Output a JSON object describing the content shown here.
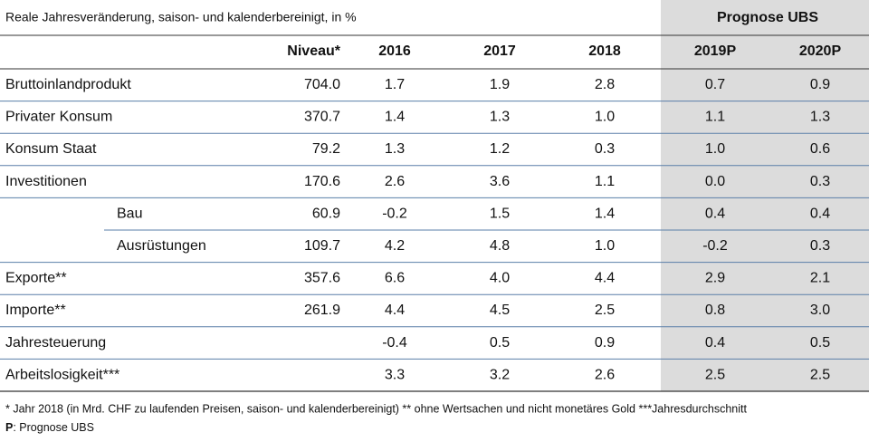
{
  "header": {
    "caption": "Reale Jahresveränderung, saison- und kalenderbereinigt, in %",
    "forecast": "Prognose UBS"
  },
  "table": {
    "columns": [
      "Niveau*",
      "2016",
      "2017",
      "2018",
      "2019P",
      "2020P"
    ],
    "rows": [
      {
        "label": "Bruttoinlandprodukt",
        "cells": [
          "704.0",
          "1.7",
          "1.9",
          "2.8",
          "0.7",
          "0.9"
        ]
      },
      {
        "label": "Privater Konsum",
        "cells": [
          "370.7",
          "1.4",
          "1.3",
          "1.0",
          "1.1",
          "1.3"
        ]
      },
      {
        "label": "Konsum Staat",
        "cells": [
          "79.2",
          "1.3",
          "1.2",
          "0.3",
          "1.0",
          "0.6"
        ]
      },
      {
        "label": "Investitionen",
        "cells": [
          "170.6",
          "2.6",
          "3.6",
          "1.1",
          "0.0",
          "0.3"
        ]
      },
      {
        "label": "Bau",
        "indent": true,
        "cells": [
          "60.9",
          "-0.2",
          "1.5",
          "1.4",
          "0.4",
          "0.4"
        ]
      },
      {
        "label": "Ausrüstungen",
        "indent": true,
        "cells": [
          "109.7",
          "4.2",
          "4.8",
          "1.0",
          "-0.2",
          "0.3"
        ]
      },
      {
        "label": "Exporte**",
        "cells": [
          "357.6",
          "6.6",
          "4.0",
          "4.4",
          "2.9",
          "2.1"
        ]
      },
      {
        "label": "Importe**",
        "cells": [
          "261.9",
          "4.4",
          "4.5",
          "2.5",
          "0.8",
          "3.0"
        ]
      },
      {
        "label": "Jahresteuerung",
        "cells": [
          null,
          "-0.4",
          "0.5",
          "0.9",
          "0.4",
          "0.5"
        ]
      },
      {
        "label": "Arbeitslosigkeit***",
        "cells": [
          null,
          "3.3",
          "3.2",
          "2.6",
          "2.5",
          "2.5"
        ]
      }
    ]
  },
  "footnotes": {
    "line1": "* Jahr 2018 (in Mrd. CHF zu laufenden Preisen, saison- und kalenderbereinigt)  ** ohne Wertsachen und nicht monetäres Gold  ***Jahresdurchschnitt",
    "line2": {
      "bold": "P",
      "text": ": Prognose UBS"
    }
  }
}
